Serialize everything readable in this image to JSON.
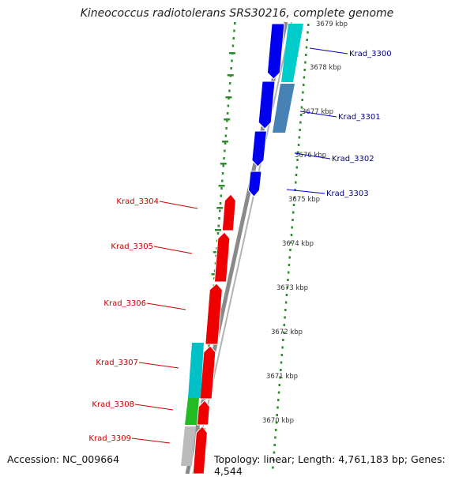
{
  "title": "Kineococcus radiotolerans SRS30216, complete genome",
  "footer": {
    "accession": "Accession: NC_009664",
    "summary": "Topology: linear; Length: 4,761,183 bp; Genes: 4,544"
  },
  "colors": {
    "backbone": "#8a8a8a",
    "tick": "#2e8b2e",
    "forward_gene": "#0000ee",
    "reverse_gene": "#ee0000",
    "forward_label": "#00008b",
    "reverse_label": "#cc0000"
  },
  "ruler": [
    "3679 kbp",
    "3678 kbp",
    "3677 kbp",
    "3676 kbp",
    "3675 kbp",
    "3674 kbp",
    "3673 kbp",
    "3672 kbp",
    "3671 kbp",
    "3670 kbp"
  ],
  "forward_genes": [
    "Krad_3300",
    "Krad_3301",
    "Krad_3302",
    "Krad_3303"
  ],
  "reverse_genes": [
    "Krad_3304",
    "Krad_3305",
    "Krad_3306",
    "Krad_3307",
    "Krad_3308",
    "Krad_3309"
  ]
}
